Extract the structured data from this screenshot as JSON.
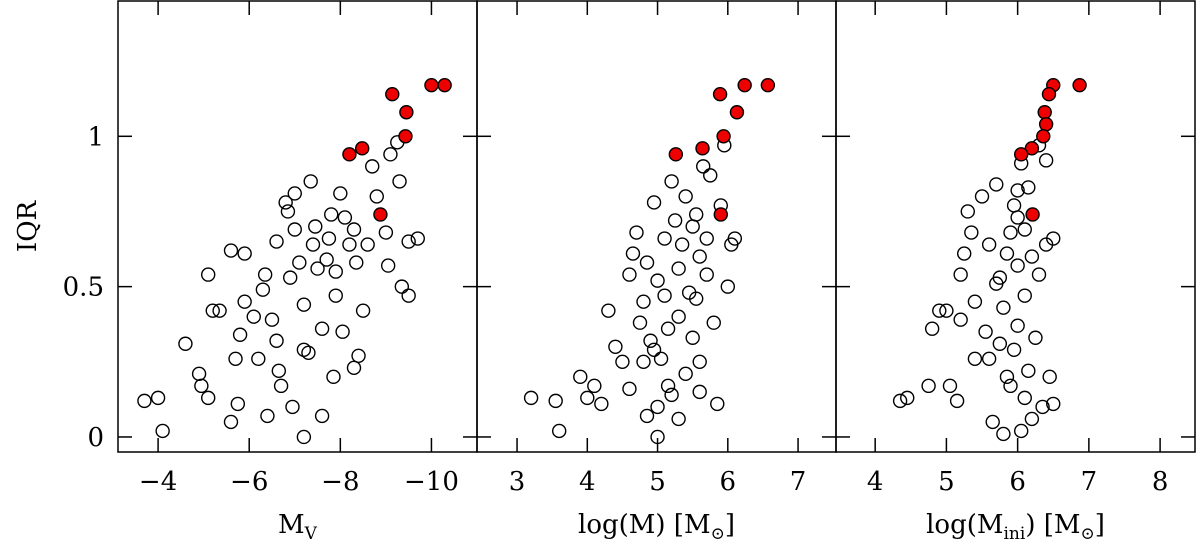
{
  "chart_data": [
    {
      "type": "scatter",
      "ylabel": "IQR",
      "xlabel": [
        "M",
        "V",
        ""
      ],
      "xlim": [
        -3.12,
        -11.0
      ],
      "ylim": [
        -0.05,
        1.45
      ],
      "xticks": [
        {
          "value": -4,
          "label": "−4"
        },
        {
          "value": -6,
          "label": "−6"
        },
        {
          "value": -8,
          "label": "−8"
        },
        {
          "value": -10,
          "label": "−10"
        }
      ],
      "yticks": [
        0,
        0.5,
        1
      ],
      "ytick_labels": true,
      "series": [
        {
          "color": "#000000",
          "fill": "none",
          "x": [
            -3.7,
            -4.0,
            -4.1,
            -4.6,
            -4.9,
            -4.95,
            -5.1,
            -5.1,
            -5.2,
            -5.35,
            -5.6,
            -5.6,
            -5.7,
            -5.75,
            -5.8,
            -5.9,
            -5.9,
            -6.1,
            -6.2,
            -6.3,
            -6.35,
            -6.4,
            -6.5,
            -6.6,
            -6.65,
            -6.7,
            -6.8,
            -6.85,
            -6.9,
            -6.95,
            -7.0,
            -7.0,
            -7.1,
            -7.2,
            -7.2,
            -7.3,
            -7.35,
            -7.4,
            -7.45,
            -7.5,
            -7.6,
            -7.6,
            -7.7,
            -7.75,
            -7.8,
            -7.85,
            -7.9,
            -8.0,
            -8.05,
            -8.1,
            -8.2,
            -8.3,
            -8.35,
            -8.5,
            -8.6,
            -8.7,
            -8.8,
            -9.0,
            -9.05,
            -9.1,
            -9.25,
            -9.3,
            -9.35,
            -9.5,
            -9.5,
            -9.7,
            -8.3,
            -7.2,
            -6.6,
            -7.9,
            -8.4
          ],
          "y": [
            0.12,
            0.13,
            0.02,
            0.31,
            0.21,
            0.17,
            0.13,
            0.54,
            0.42,
            0.42,
            0.05,
            0.62,
            0.26,
            0.11,
            0.34,
            0.61,
            0.45,
            0.4,
            0.26,
            0.49,
            0.54,
            0.07,
            0.39,
            0.32,
            0.22,
            0.17,
            0.78,
            0.75,
            0.53,
            0.1,
            0.69,
            0.81,
            0.58,
            0.44,
            0.0,
            0.28,
            0.85,
            0.64,
            0.7,
            0.56,
            0.36,
            0.07,
            0.59,
            0.66,
            0.74,
            0.2,
            0.55,
            0.81,
            0.35,
            0.73,
            0.64,
            0.69,
            0.58,
            0.42,
            0.64,
            0.9,
            0.8,
            0.68,
            0.57,
            0.94,
            0.98,
            0.85,
            0.5,
            0.47,
            0.65,
            0.66,
            0.23,
            0.29,
            0.65,
            0.47,
            0.27
          ]
        },
        {
          "color": "#000000",
          "fill": "#ee0000",
          "x": [
            -10.29,
            -10.0,
            -9.14,
            -9.45,
            -9.43,
            -8.48,
            -8.2,
            -8.88
          ],
          "y": [
            1.17,
            1.17,
            1.14,
            1.08,
            1.0,
            0.96,
            0.94,
            0.74
          ]
        }
      ]
    },
    {
      "type": "scatter",
      "xlabel": [
        "log(M) [M",
        "⊙",
        "]"
      ],
      "xlim": [
        2.43,
        7.54
      ],
      "ylim": [
        -0.05,
        1.45
      ],
      "xticks": [
        3,
        4,
        5,
        6,
        7
      ],
      "yticks": [
        0,
        0.5,
        1
      ],
      "ytick_labels": false,
      "series": [
        {
          "color": "#000000",
          "fill": "none",
          "x": [
            3.2,
            3.55,
            3.6,
            3.9,
            4.0,
            4.1,
            4.2,
            4.3,
            4.4,
            4.5,
            4.6,
            4.6,
            4.65,
            4.7,
            4.75,
            4.8,
            4.8,
            4.85,
            4.9,
            4.95,
            5.0,
            5.0,
            5.0,
            5.05,
            5.1,
            5.1,
            5.15,
            5.2,
            5.2,
            5.25,
            5.3,
            5.3,
            5.35,
            5.4,
            5.4,
            5.45,
            5.5,
            5.5,
            5.55,
            5.6,
            5.6,
            5.65,
            5.7,
            5.7,
            5.75,
            5.8,
            5.85,
            5.9,
            5.95,
            6.0,
            6.05,
            6.1,
            4.85,
            5.3,
            5.15,
            4.95,
            5.55,
            5.6
          ],
          "y": [
            0.13,
            0.12,
            0.02,
            0.2,
            0.13,
            0.17,
            0.11,
            0.42,
            0.3,
            0.25,
            0.16,
            0.54,
            0.61,
            0.68,
            0.38,
            0.25,
            0.45,
            0.07,
            0.32,
            0.78,
            0.52,
            0.1,
            0.0,
            0.26,
            0.47,
            0.66,
            0.36,
            0.85,
            0.14,
            0.72,
            0.56,
            0.4,
            0.64,
            0.21,
            0.8,
            0.48,
            0.7,
            0.33,
            0.74,
            0.6,
            0.15,
            0.9,
            0.54,
            0.66,
            0.87,
            0.38,
            0.11,
            0.77,
            0.97,
            0.5,
            0.64,
            0.66,
            0.58,
            0.06,
            0.17,
            0.29,
            0.46,
            0.25
          ]
        },
        {
          "color": "#000000",
          "fill": "#ee0000",
          "x": [
            6.57,
            6.24,
            5.89,
            6.13,
            5.94,
            5.64,
            5.26,
            5.9
          ],
          "y": [
            1.17,
            1.17,
            1.14,
            1.08,
            1.0,
            0.96,
            0.94,
            0.74
          ]
        }
      ]
    },
    {
      "type": "scatter",
      "xlabel": [
        "log(M",
        "ini",
        ") [M",
        "⊙",
        "]"
      ],
      "xlim": [
        3.45,
        8.49
      ],
      "ylim": [
        -0.05,
        1.45
      ],
      "xticks": [
        4,
        5,
        6,
        7,
        8
      ],
      "yticks": [
        0,
        0.5,
        1
      ],
      "ytick_labels": false,
      "series": [
        {
          "color": "#000000",
          "fill": "none",
          "x": [
            4.35,
            4.45,
            4.75,
            4.8,
            4.9,
            5.0,
            5.05,
            5.15,
            5.2,
            5.2,
            5.25,
            5.3,
            5.35,
            5.4,
            5.4,
            5.5,
            5.55,
            5.6,
            5.6,
            5.65,
            5.7,
            5.7,
            5.75,
            5.75,
            5.8,
            5.8,
            5.85,
            5.9,
            5.9,
            5.95,
            6.0,
            6.0,
            6.0,
            6.05,
            6.05,
            6.1,
            6.1,
            6.15,
            6.15,
            6.2,
            6.2,
            6.25,
            6.3,
            6.3,
            6.35,
            6.4,
            6.4,
            6.45,
            6.5,
            6.5,
            6.0,
            5.95,
            6.1,
            5.85
          ],
          "y": [
            0.12,
            0.13,
            0.17,
            0.36,
            0.42,
            0.42,
            0.17,
            0.12,
            0.54,
            0.39,
            0.61,
            0.75,
            0.68,
            0.26,
            0.45,
            0.8,
            0.35,
            0.64,
            0.26,
            0.05,
            0.51,
            0.84,
            0.53,
            0.31,
            0.43,
            0.01,
            0.61,
            0.68,
            0.17,
            0.77,
            0.73,
            0.57,
            0.37,
            0.02,
            0.91,
            0.69,
            0.47,
            0.22,
            0.83,
            0.6,
            0.06,
            0.33,
            0.97,
            0.54,
            0.1,
            0.64,
            0.92,
            0.2,
            0.66,
            0.11,
            0.82,
            0.29,
            0.13,
            0.2
          ]
        },
        {
          "color": "#000000",
          "fill": "#ee0000",
          "x": [
            6.87,
            6.5,
            6.44,
            6.38,
            6.4,
            6.36,
            6.2,
            6.05,
            6.21
          ],
          "y": [
            1.17,
            1.17,
            1.14,
            1.08,
            1.04,
            1.0,
            0.96,
            0.94,
            0.74
          ]
        }
      ]
    }
  ]
}
